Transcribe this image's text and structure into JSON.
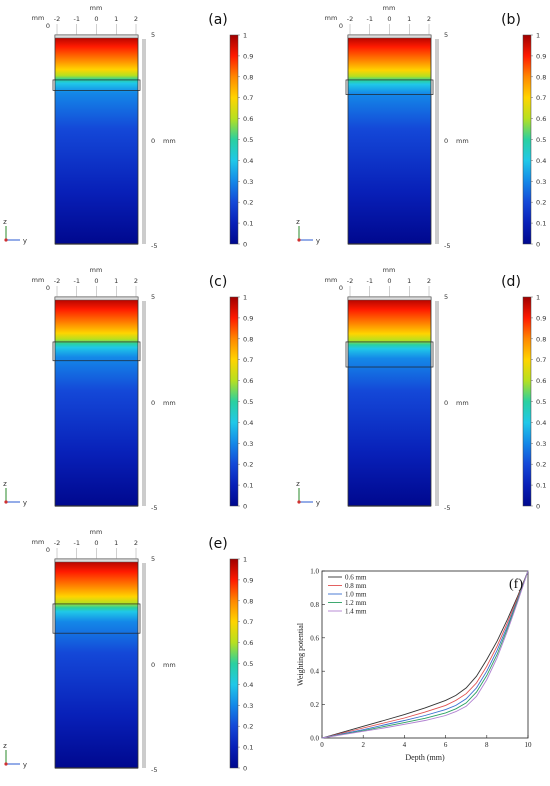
{
  "field_panels": [
    {
      "label": "(a)",
      "layer_top_frac": 0.215,
      "layer_bottom_frac": 0.265,
      "hot_bottom_frac": 0.22
    },
    {
      "label": "(b)",
      "layer_top_frac": 0.215,
      "layer_bottom_frac": 0.285,
      "hot_bottom_frac": 0.225
    },
    {
      "label": "(c)",
      "layer_top_frac": 0.215,
      "layer_bottom_frac": 0.305,
      "hot_bottom_frac": 0.23
    },
    {
      "label": "(d)",
      "layer_top_frac": 0.215,
      "layer_bottom_frac": 0.335,
      "hot_bottom_frac": 0.235
    },
    {
      "label": "(e)",
      "layer_top_frac": 0.215,
      "layer_bottom_frac": 0.355,
      "hot_bottom_frac": 0.24
    }
  ],
  "field_axes": {
    "x_unit": "mm",
    "x_ticks": [
      "-2",
      "-1",
      "0",
      "1",
      "2"
    ],
    "corner_unit": "mm",
    "corner_zero": "0",
    "z_ticks": [
      "5",
      "0",
      "-5"
    ],
    "z_unit": "mm",
    "triad_z": "z",
    "triad_y": "y"
  },
  "colorbar": {
    "ticks": [
      "1",
      "0.9",
      "0.8",
      "0.7",
      "0.6",
      "0.5",
      "0.4",
      "0.3",
      "0.2",
      "0.1",
      "0"
    ],
    "stops": [
      "#a00000",
      "#ff1a00",
      "#ff8800",
      "#ffd400",
      "#b6e020",
      "#2ad0a0",
      "#20c8e8",
      "#1488e8",
      "#1448d8",
      "#0820b8",
      "#00088e"
    ]
  },
  "chart_data": {
    "label": "(f)",
    "type": "line",
    "xlabel": "Depth (mm)",
    "ylabel": "Weighting potential",
    "xlim": [
      0,
      10
    ],
    "ylim": [
      0,
      1.0
    ],
    "x_ticks": [
      0,
      2,
      4,
      6,
      8,
      10
    ],
    "y_ticks": [
      0.0,
      0.2,
      0.4,
      0.6,
      0.8,
      1.0
    ],
    "legend_position": "top-left",
    "series": [
      {
        "name": "0.6 mm",
        "color": "#333333",
        "x": [
          0,
          1,
          2,
          3,
          4,
          5,
          6,
          6.5,
          7,
          7.5,
          8,
          8.5,
          9,
          9.5,
          10
        ],
        "y": [
          0,
          0.035,
          0.07,
          0.105,
          0.14,
          0.18,
          0.225,
          0.255,
          0.3,
          0.37,
          0.47,
          0.58,
          0.71,
          0.85,
          1.0
        ]
      },
      {
        "name": "0.8 mm",
        "color": "#e05050",
        "x": [
          0,
          1,
          2,
          3,
          4,
          5,
          6,
          6.5,
          7,
          7.5,
          8,
          8.5,
          9,
          9.5,
          10
        ],
        "y": [
          0,
          0.03,
          0.06,
          0.09,
          0.12,
          0.155,
          0.195,
          0.225,
          0.265,
          0.33,
          0.43,
          0.55,
          0.69,
          0.84,
          1.0
        ]
      },
      {
        "name": "1.0 mm",
        "color": "#3a6fd0",
        "x": [
          0,
          1,
          2,
          3,
          4,
          5,
          6,
          6.5,
          7,
          7.5,
          8,
          8.5,
          9,
          9.5,
          10
        ],
        "y": [
          0,
          0.025,
          0.05,
          0.078,
          0.105,
          0.135,
          0.17,
          0.195,
          0.235,
          0.3,
          0.4,
          0.525,
          0.67,
          0.83,
          1.0
        ]
      },
      {
        "name": "1.2 mm",
        "color": "#2aa060",
        "x": [
          0,
          1,
          2,
          3,
          4,
          5,
          6,
          6.5,
          7,
          7.5,
          8,
          8.5,
          9,
          9.5,
          10
        ],
        "y": [
          0,
          0.022,
          0.044,
          0.068,
          0.092,
          0.118,
          0.15,
          0.175,
          0.21,
          0.275,
          0.375,
          0.5,
          0.655,
          0.825,
          1.0
        ]
      },
      {
        "name": "1.4 mm",
        "color": "#b080d0",
        "x": [
          0,
          1,
          2,
          3,
          4,
          5,
          6,
          6.5,
          7,
          7.5,
          8,
          8.5,
          9,
          9.5,
          10
        ],
        "y": [
          0,
          0.02,
          0.04,
          0.06,
          0.082,
          0.105,
          0.135,
          0.158,
          0.19,
          0.25,
          0.35,
          0.48,
          0.64,
          0.815,
          1.0
        ]
      }
    ]
  }
}
